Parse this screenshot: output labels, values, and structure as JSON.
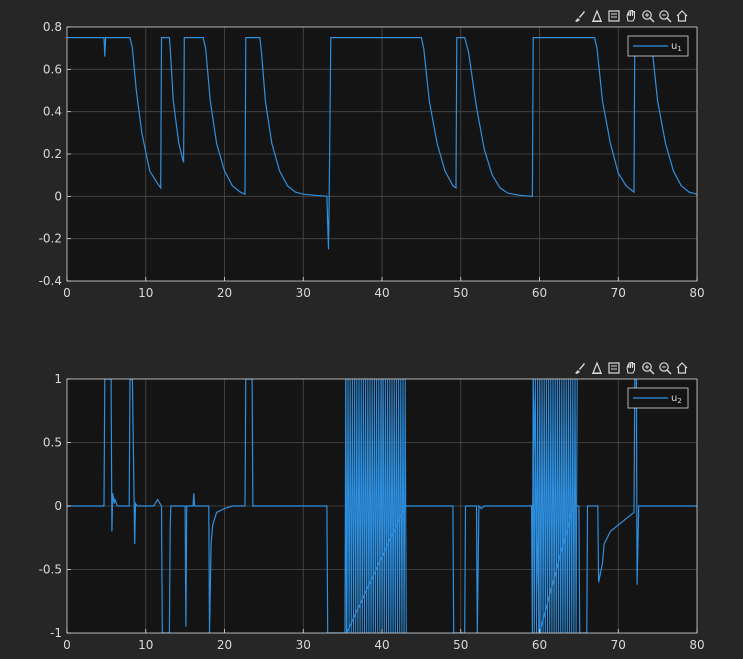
{
  "figure": {
    "background": "#262626",
    "axes_bg": "#141414",
    "grid_color": "#4a4a4a",
    "axis_color": "#d9d9d9",
    "tick_color": "#d9d9d9",
    "line_color": "#2d8fe0"
  },
  "toolbar": {
    "icons": [
      "brush-icon",
      "data-tips-icon",
      "save-icon",
      "pan-icon",
      "zoom-in-icon",
      "zoom-out-icon",
      "home-icon"
    ]
  },
  "chart_data": [
    {
      "type": "line",
      "xlim": [
        0,
        80
      ],
      "ylim": [
        -0.4,
        0.8
      ],
      "xticks": [
        0,
        10,
        20,
        30,
        40,
        50,
        60,
        70,
        80
      ],
      "yticks": [
        -0.4,
        -0.2,
        0,
        0.2,
        0.4,
        0.6,
        0.8
      ],
      "yticklabels": [
        "-0.4",
        "-0.2",
        "0",
        "0.2",
        "0.4",
        "0.6",
        "0.8"
      ],
      "grid": true,
      "legend": {
        "position": "top-right",
        "label": "u",
        "subscript": "1"
      },
      "series": [
        {
          "x": [
            0,
            4.7,
            4.8,
            4.9,
            8.0,
            8.3,
            8.8,
            9.5,
            10.5,
            11.5,
            11.9,
            12.0,
            13.0,
            13.1,
            13.5,
            14.2,
            14.8,
            14.9,
            15.0,
            17.3,
            17.6,
            18.2,
            19.0,
            20.0,
            21.0,
            22.0,
            22.6,
            22.7,
            24.5,
            24.7,
            25.2,
            26.0,
            27.0,
            28.0,
            29.0,
            30.0,
            31.5,
            33.0,
            33.2,
            33.3,
            33.5,
            45.0,
            45.3,
            46.0,
            47.0,
            48.0,
            49.0,
            49.4,
            49.5,
            50.5,
            51.0,
            52.0,
            53.0,
            54.0,
            55.0,
            56.0,
            57.5,
            59.0,
            59.1,
            59.2,
            67.0,
            67.3,
            68.0,
            69.0,
            70.0,
            71.0,
            72.0,
            72.1,
            72.2,
            74.0,
            74.3,
            75.0,
            76.0,
            77.0,
            78.0,
            79.0,
            80.0
          ],
          "y": [
            0.75,
            0.75,
            0.66,
            0.75,
            0.75,
            0.7,
            0.5,
            0.3,
            0.12,
            0.06,
            0.04,
            0.75,
            0.75,
            0.7,
            0.45,
            0.25,
            0.16,
            0.75,
            0.75,
            0.75,
            0.7,
            0.45,
            0.25,
            0.12,
            0.05,
            0.02,
            0.01,
            0.75,
            0.75,
            0.68,
            0.45,
            0.25,
            0.12,
            0.05,
            0.02,
            0.01,
            0.005,
            0.0,
            -0.25,
            0.0,
            0.75,
            0.75,
            0.7,
            0.45,
            0.25,
            0.12,
            0.05,
            0.04,
            0.75,
            0.75,
            0.68,
            0.42,
            0.22,
            0.1,
            0.04,
            0.015,
            0.005,
            0.0,
            0.0,
            0.75,
            0.75,
            0.7,
            0.45,
            0.25,
            0.11,
            0.05,
            0.02,
            0.75,
            0.75,
            0.75,
            0.7,
            0.45,
            0.25,
            0.12,
            0.05,
            0.02,
            0.01
          ]
        }
      ]
    },
    {
      "type": "line",
      "xlim": [
        0,
        80
      ],
      "ylim": [
        -1,
        1
      ],
      "xticks": [
        0,
        10,
        20,
        30,
        40,
        50,
        60,
        70,
        80
      ],
      "yticks": [
        -1,
        -0.5,
        0,
        0.5,
        1
      ],
      "yticklabels": [
        "-1",
        "-0.5",
        "0",
        "0.5",
        "1"
      ],
      "grid": true,
      "legend": {
        "position": "top-right",
        "label": "u",
        "subscript": "2"
      },
      "series": [
        {
          "x": [
            0,
            4.7,
            4.8,
            5.6,
            5.7,
            5.8,
            6.0,
            6.1,
            6.4,
            7.9,
            8.0,
            8.3,
            8.6,
            8.7,
            8.9,
            9.0,
            11.0,
            11.5,
            12.0,
            12.1,
            12.2,
            13.0,
            13.1,
            13.2,
            15.0,
            15.1,
            15.2,
            15.3,
            16.0,
            16.1,
            16.2,
            18.0,
            18.1,
            18.3,
            18.5,
            19.0,
            20.0,
            21.0,
            22.6,
            22.7,
            23.5,
            23.6,
            24.0,
            33.0,
            33.1,
            35.3,
            35.4,
            35.5,
            43.0,
            43.1,
            45.0,
            49.0,
            49.1,
            50.5,
            50.6,
            51.0,
            52.0,
            52.1,
            52.3,
            52.6,
            53.0,
            54.0,
            59.0,
            59.1,
            59.2,
            60.0,
            64.3,
            65.0,
            65.1,
            66.0,
            66.1,
            67.0,
            67.4,
            67.5,
            68.0,
            68.2,
            69.0,
            70.0,
            71.0,
            72.0,
            72.1,
            72.3,
            72.4,
            72.6,
            72.8,
            73.0,
            80.0
          ],
          "y": [
            0,
            0,
            1,
            1,
            -0.2,
            0.1,
            0.02,
            0.05,
            0,
            0,
            1,
            1,
            -0.3,
            0.02,
            0,
            0,
            0,
            0.05,
            0,
            -1,
            -1,
            -1,
            -0.15,
            0,
            0,
            -0.95,
            0,
            0,
            0,
            0.1,
            0,
            0,
            -1,
            -0.3,
            -0.15,
            -0.05,
            -0.02,
            0,
            0,
            1,
            1,
            0,
            0,
            0,
            -1,
            -1,
            1,
            -1,
            0,
            0,
            0,
            0,
            -1,
            -1,
            0,
            0,
            0,
            -1,
            0,
            -0.02,
            0,
            0,
            0,
            -1,
            1,
            -1,
            0,
            0,
            -1,
            -1,
            0,
            0,
            0,
            -0.6,
            -0.45,
            -0.3,
            -0.2,
            -0.15,
            -0.1,
            -0.05,
            1,
            1,
            -0.62,
            0,
            0,
            0,
            0
          ]
        }
      ],
      "oscillation_bands": [
        {
          "from": 35.4,
          "to": 43.1,
          "amplitude": 1.0
        },
        {
          "from": 59.2,
          "to": 64.8,
          "amplitude": 1.0
        }
      ]
    }
  ]
}
